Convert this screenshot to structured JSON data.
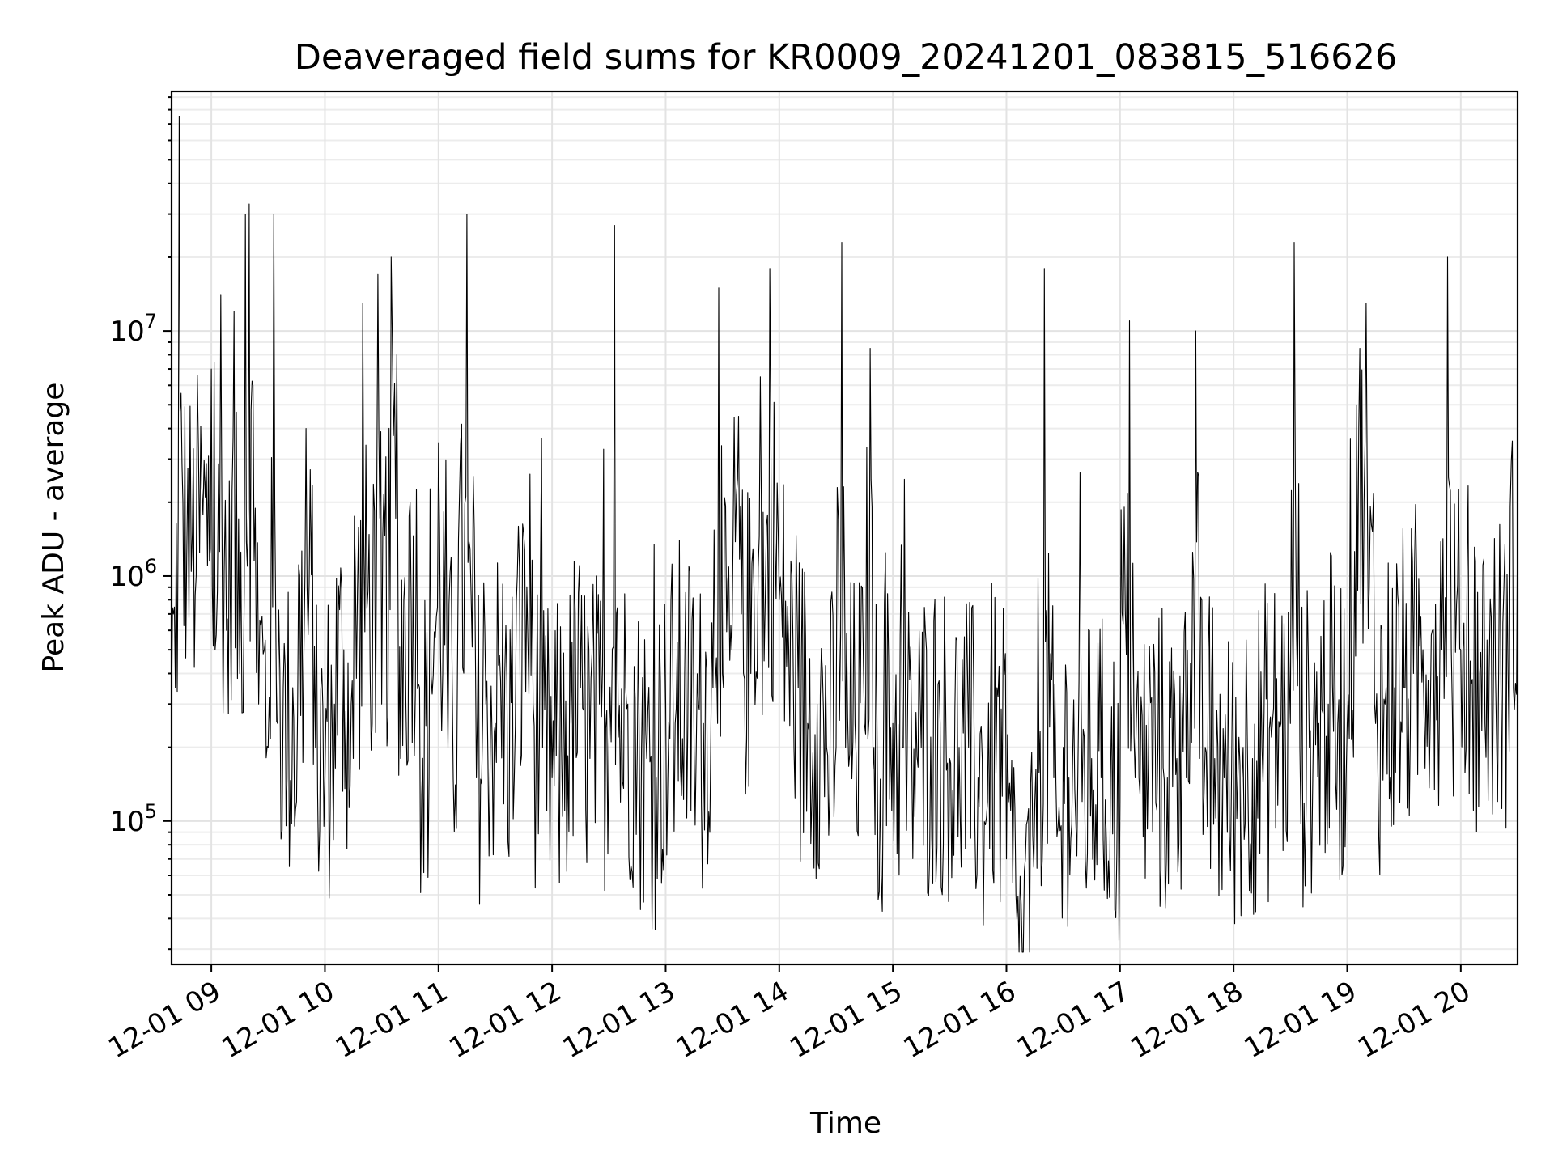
{
  "chart_data": {
    "type": "line",
    "title": "Deaveraged field sums for KR0009_20241201_083815_516626",
    "xlabel": "Time",
    "ylabel": "Peak ADU - average",
    "yscale": "log",
    "grid": true,
    "xlim": [
      "12-01 08:39",
      "12-01 20:30"
    ],
    "ylim": [
      26000,
      95000000
    ],
    "x_ticks": [
      "12-01 09",
      "12-01 10",
      "12-01 11",
      "12-01 12",
      "12-01 13",
      "12-01 14",
      "12-01 15",
      "12-01 16",
      "12-01 17",
      "12-01 18",
      "12-01 19",
      "12-01 20"
    ],
    "y_ticks": [
      {
        "base": "10",
        "exp": "5",
        "value": 100000
      },
      {
        "base": "10",
        "exp": "6",
        "value": 1000000
      },
      {
        "base": "10",
        "exp": "7",
        "value": 10000000
      }
    ],
    "line_color": "#000000",
    "series": [
      {
        "x": [
          "08:39",
          "08:40",
          "08:41",
          "08:43",
          "08:45",
          "08:47",
          "08:50",
          "08:52",
          "08:55",
          "08:58",
          "09:00",
          "09:02",
          "09:05",
          "09:08",
          "09:10",
          "09:12",
          "09:15",
          "09:18",
          "09:20",
          "09:22",
          "09:25",
          "09:28",
          "09:30",
          "09:33",
          "09:35",
          "09:38",
          "09:40",
          "09:43",
          "09:45",
          "09:50",
          "09:55",
          "10:00",
          "10:05",
          "10:10",
          "10:15",
          "10:20",
          "10:25",
          "10:28",
          "10:30",
          "10:35",
          "10:38",
          "10:40",
          "10:45",
          "10:50",
          "10:55",
          "11:00",
          "11:05",
          "11:10",
          "11:15",
          "11:20",
          "11:25",
          "11:30",
          "11:35",
          "11:40",
          "11:45",
          "11:50",
          "11:55",
          "12:00",
          "12:05",
          "12:10",
          "12:15",
          "12:20",
          "12:25",
          "12:30",
          "12:33",
          "12:35",
          "12:40",
          "12:45",
          "12:50",
          "12:55",
          "13:00",
          "13:05",
          "13:10",
          "13:15",
          "13:20",
          "13:25",
          "13:28",
          "13:30",
          "13:35",
          "13:38",
          "13:40",
          "13:45",
          "13:50",
          "13:52",
          "13:55",
          "14:00",
          "14:05",
          "14:10",
          "14:15",
          "14:20",
          "14:25",
          "14:30",
          "14:33",
          "14:35",
          "14:40",
          "14:45",
          "14:48",
          "14:50",
          "14:55",
          "15:00",
          "15:05",
          "15:10",
          "15:15",
          "15:20",
          "15:25",
          "15:30",
          "15:35",
          "15:40",
          "15:45",
          "15:50",
          "15:55",
          "16:00",
          "16:05",
          "16:10",
          "16:15",
          "16:20",
          "16:25",
          "16:30",
          "16:33",
          "16:35",
          "16:40",
          "16:45",
          "16:50",
          "16:55",
          "17:00",
          "17:05",
          "17:08",
          "17:10",
          "17:15",
          "17:20",
          "17:25",
          "17:30",
          "17:35",
          "17:40",
          "17:42",
          "17:45",
          "17:50",
          "17:55",
          "18:00",
          "18:05",
          "18:10",
          "18:15",
          "18:20",
          "18:25",
          "18:30",
          "18:32",
          "18:35",
          "18:40",
          "18:45",
          "18:50",
          "18:55",
          "19:00",
          "19:05",
          "19:10",
          "19:15",
          "19:20",
          "19:25",
          "19:30",
          "19:35",
          "19:40",
          "19:45",
          "19:50",
          "19:53",
          "19:55",
          "20:00",
          "20:05",
          "20:10",
          "20:15",
          "20:20",
          "20:25",
          "20:30"
        ],
        "y": [
          300000,
          700000,
          350000,
          75000000,
          2000000,
          1200000,
          1500000,
          1000000,
          2300000,
          1100000,
          7000000,
          500000,
          14000000,
          600000,
          800000,
          12000000,
          400000,
          30000000,
          33000000,
          6000000,
          300000,
          500000,
          200000,
          30000000,
          250000,
          350000,
          150000,
          350000,
          120000,
          4000000,
          200000,
          150000,
          300000,
          500000,
          180000,
          13000000,
          250000,
          17000000,
          300000,
          20000000,
          8000000,
          180000,
          2000000,
          350000,
          150000,
          3500000,
          200000,
          400000,
          30000000,
          150000,
          300000,
          250000,
          400000,
          150000,
          1500000,
          300000,
          200000,
          150000,
          200000,
          250000,
          350000,
          180000,
          300000,
          200000,
          27000000,
          220000,
          300000,
          200000,
          180000,
          150000,
          300000,
          250000,
          400000,
          200000,
          250000,
          350000,
          15000000,
          400000,
          500000,
          2500000,
          700000,
          400000,
          6500000,
          450000,
          18000000,
          800000,
          500000,
          350000,
          250000,
          300000,
          200000,
          200000,
          23000000,
          200000,
          250000,
          250000,
          8500000,
          200000,
          180000,
          250000,
          200000,
          180000,
          200000,
          220000,
          250000,
          180000,
          200000,
          200000,
          150000,
          120000,
          350000,
          70000,
          50000,
          70000,
          120000,
          18000000,
          150000,
          200000,
          150000,
          180000,
          120000,
          180000,
          150000,
          150000,
          120000,
          11000000,
          150000,
          150000,
          180000,
          200000,
          150000,
          180000,
          150000,
          10000000,
          180000,
          200000,
          180000,
          150000,
          120000,
          200000,
          180000,
          200000,
          220000,
          250000,
          250000,
          23000000,
          200000,
          200000,
          250000,
          300000,
          250000,
          250000,
          5000000,
          13000000,
          250000,
          300000,
          350000,
          350000,
          400000,
          500000,
          600000,
          500000,
          20000000,
          500000,
          500000,
          450000,
          400000,
          400000,
          400000,
          400000,
          1900000
        ]
      }
    ]
  }
}
